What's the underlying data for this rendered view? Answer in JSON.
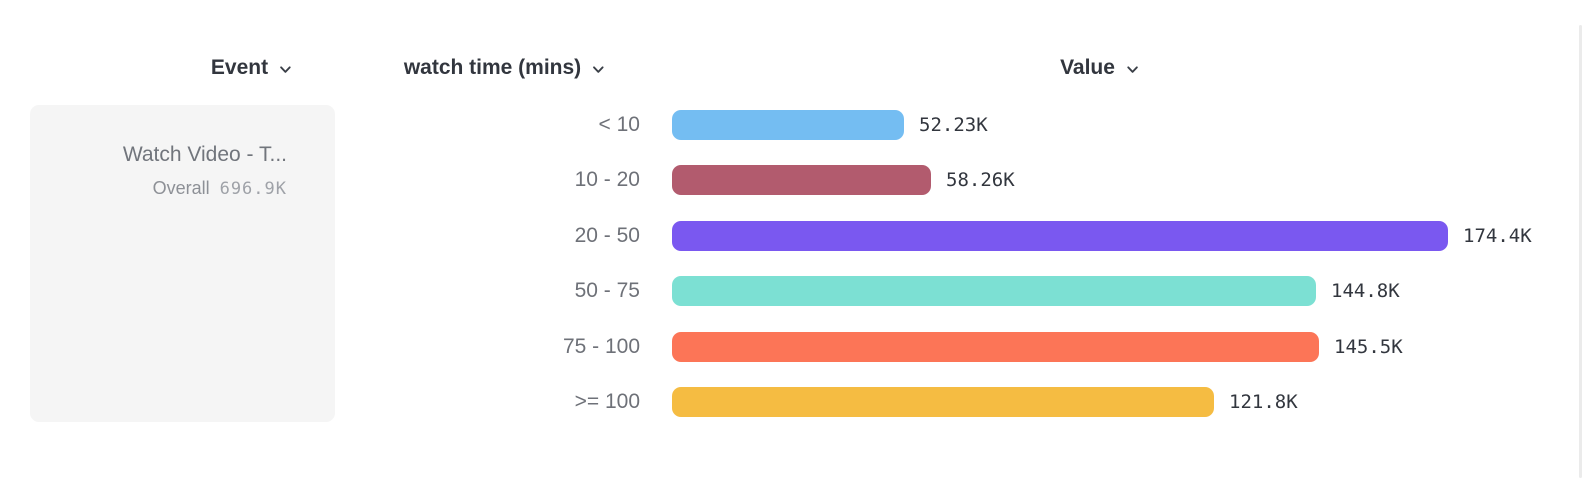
{
  "header": {
    "event_label": "Event",
    "watch_time_label": "watch time (mins)",
    "value_label": "Value"
  },
  "event_card": {
    "title": "Watch Video - T...",
    "overall_label": "Overall",
    "overall_value": "696.9K"
  },
  "chart_data": {
    "type": "bar",
    "orientation": "horizontal",
    "title": "Watch Video - T... by watch time (mins)",
    "xlabel": "Value",
    "ylabel": "watch time (mins)",
    "overall_total": "696.9K",
    "categories": [
      "< 10",
      "10 - 20",
      "20 - 50",
      "50 - 75",
      "75 - 100",
      ">= 100"
    ],
    "values_thousands": [
      52.23,
      58.26,
      174.4,
      144.8,
      145.5,
      121.8
    ],
    "value_labels": [
      "52.23K",
      "58.26K",
      "174.4K",
      "144.8K",
      "145.5K",
      "121.8K"
    ],
    "bar_colors": [
      "#74bdf2",
      "#b25b6e",
      "#7a58f0",
      "#7ce0d3",
      "#fc7557",
      "#f5bc42"
    ],
    "max_value_thousands": 174.4,
    "grid": false,
    "legend": false
  },
  "icons": {
    "chevron_down": "chevron-down"
  },
  "colors": {
    "header_text": "#32363e",
    "category_text": "#6e7178",
    "card_background": "#f5f5f5",
    "card_title_text": "#71757c",
    "value_text": "#32363e"
  }
}
